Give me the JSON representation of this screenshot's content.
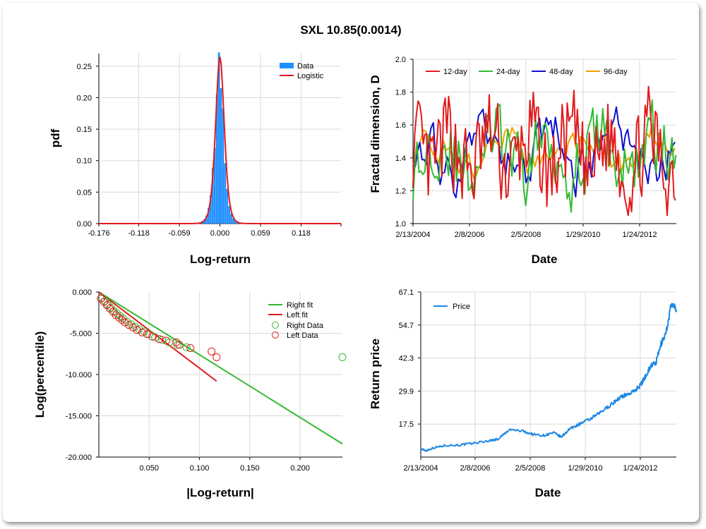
{
  "title": "SXL 10.85(0.0014)",
  "chart_data": [
    {
      "type": "bar",
      "xlabel": "Log-return",
      "ylabel": "pdf",
      "x_ticks": [
        "-0.176",
        "-0.118",
        "-0.059",
        "0.000",
        "0.059",
        "0.118"
      ],
      "x_tick_values": [
        -0.176,
        -0.118,
        -0.059,
        0.0,
        0.059,
        0.118
      ],
      "y_ticks": [
        "0.00",
        "0.05",
        "0.10",
        "0.15",
        "0.20",
        "0.25"
      ],
      "xlim": [
        -0.176,
        0.176
      ],
      "ylim": [
        0,
        0.27
      ],
      "legend": [
        "Data",
        "Logistic"
      ],
      "legend_placement": "top-right",
      "series": [
        {
          "name": "Data",
          "color": "#1e90ff",
          "bins": [
            -0.0285,
            -0.0255,
            -0.0225,
            -0.0195,
            -0.0165,
            -0.0135,
            -0.0105,
            -0.0075,
            -0.0045,
            -0.0015,
            0.0015,
            0.0045,
            0.0075,
            0.0105,
            0.0135,
            0.0165,
            0.0195,
            0.0225,
            0.0255,
            0.0285
          ],
          "values": [
            0.002,
            0.004,
            0.007,
            0.013,
            0.025,
            0.045,
            0.088,
            0.12,
            0.205,
            0.272,
            0.215,
            0.183,
            0.096,
            0.055,
            0.028,
            0.016,
            0.008,
            0.005,
            0.003,
            0.002
          ]
        },
        {
          "name": "Logistic",
          "color": "#e31a1c",
          "mu": 0.0,
          "s": 0.0042,
          "peak": 0.265
        }
      ]
    },
    {
      "type": "line",
      "xlabel": "Date",
      "ylabel": "Fractal dimension, D",
      "x_ticks": [
        "2/13/2004",
        "2/8/2006",
        "2/5/2008",
        "1/29/2010",
        "1/24/2012"
      ],
      "y_ticks": [
        "1.0",
        "1.2",
        "1.4",
        "1.6",
        "1.8",
        "2.0"
      ],
      "ylim": [
        1.0,
        2.0
      ],
      "legend_placement": "top",
      "series": [
        {
          "name": "12-day",
          "color": "#e31a1c"
        },
        {
          "name": "24-day",
          "color": "#33bb33"
        },
        {
          "name": "48-day",
          "color": "#1010cc"
        },
        {
          "name": "96-day",
          "color": "#f5a000"
        }
      ]
    },
    {
      "type": "scatter",
      "xlabel": "|Log-return|",
      "ylabel": "Log(percentile)",
      "x_ticks": [
        "0.050",
        "0.100",
        "0.150",
        "0.200"
      ],
      "x_tick_values": [
        0.05,
        0.1,
        0.15,
        0.2
      ],
      "y_ticks": [
        "0.000",
        "-5.000",
        "-10.000",
        "-15.000",
        "-20.000"
      ],
      "y_tick_values": [
        0,
        -5,
        -10,
        -15,
        -20
      ],
      "xlim": [
        0.0,
        0.242
      ],
      "ylim": [
        -20,
        0
      ],
      "legend_placement": "top-right",
      "series": [
        {
          "name": "Right fit",
          "color": "#33bb33",
          "kind": "line",
          "points": [
            [
              0.0,
              0.0
            ],
            [
              0.242,
              -18.4
            ]
          ]
        },
        {
          "name": "Left fit",
          "color": "#e31a1c",
          "kind": "line",
          "points": [
            [
              0.0,
              0.0
            ],
            [
              0.117,
              -10.8
            ]
          ]
        },
        {
          "name": "Right Data",
          "color": "#33bb33",
          "kind": "markers",
          "points": [
            [
              0.003,
              -0.7
            ],
            [
              0.006,
              -1.1
            ],
            [
              0.009,
              -1.5
            ],
            [
              0.012,
              -1.9
            ],
            [
              0.015,
              -2.3
            ],
            [
              0.018,
              -2.6
            ],
            [
              0.021,
              -2.9
            ],
            [
              0.024,
              -3.2
            ],
            [
              0.028,
              -3.6
            ],
            [
              0.032,
              -3.9
            ],
            [
              0.036,
              -4.2
            ],
            [
              0.04,
              -4.5
            ],
            [
              0.045,
              -4.8
            ],
            [
              0.05,
              -5.1
            ],
            [
              0.056,
              -5.5
            ],
            [
              0.063,
              -5.8
            ],
            [
              0.07,
              -6.1
            ],
            [
              0.078,
              -6.4
            ],
            [
              0.087,
              -6.7
            ],
            [
              0.242,
              -7.9
            ]
          ]
        },
        {
          "name": "Left Data",
          "color": "#e31a1c",
          "kind": "markers",
          "points": [
            [
              0.002,
              -0.8
            ],
            [
              0.005,
              -1.2
            ],
            [
              0.008,
              -1.6
            ],
            [
              0.011,
              -2.0
            ],
            [
              0.014,
              -2.4
            ],
            [
              0.017,
              -2.8
            ],
            [
              0.02,
              -3.1
            ],
            [
              0.023,
              -3.4
            ],
            [
              0.026,
              -3.7
            ],
            [
              0.03,
              -4.0
            ],
            [
              0.034,
              -4.3
            ],
            [
              0.038,
              -4.6
            ],
            [
              0.043,
              -4.9
            ],
            [
              0.048,
              -5.1
            ],
            [
              0.053,
              -5.4
            ],
            [
              0.06,
              -5.7
            ],
            [
              0.067,
              -5.9
            ],
            [
              0.077,
              -6.1
            ],
            [
              0.08,
              -6.4
            ],
            [
              0.091,
              -6.8
            ],
            [
              0.112,
              -7.2
            ],
            [
              0.117,
              -7.9
            ]
          ]
        }
      ]
    },
    {
      "type": "line",
      "xlabel": "Date",
      "ylabel": "Return price",
      "x_ticks": [
        "2/13/2004",
        "2/8/2006",
        "2/5/2008",
        "1/29/2010",
        "1/24/2012"
      ],
      "y_ticks": [
        "17.5",
        "29.9",
        "42.3",
        "54.7",
        "67.1"
      ],
      "y_tick_values": [
        17.5,
        29.9,
        42.3,
        54.7,
        67.1
      ],
      "ylim": [
        5.1,
        67.1
      ],
      "legend_placement": "top-left",
      "series": [
        {
          "name": "Price",
          "color": "#1e88e5",
          "x": [
            0,
            0.02,
            0.05,
            0.1,
            0.15,
            0.2,
            0.26,
            0.3,
            0.35,
            0.4,
            0.44,
            0.48,
            0.52,
            0.55,
            0.58,
            0.62,
            0.66,
            0.7,
            0.74,
            0.78,
            0.8,
            0.83,
            0.86,
            0.88,
            0.9,
            0.92,
            0.94,
            0.96,
            0.98,
            1.0
          ],
          "values": [
            8.2,
            7.5,
            8.6,
            9.5,
            9.6,
            10.2,
            11.1,
            11.8,
            15.4,
            14.8,
            13.6,
            13.2,
            14.2,
            12.6,
            15.5,
            17.5,
            19.2,
            21.6,
            24.5,
            27.5,
            28.4,
            29.5,
            32.2,
            35.6,
            39.4,
            40.5,
            47.4,
            52.0,
            62.4,
            60.5
          ]
        }
      ]
    }
  ]
}
